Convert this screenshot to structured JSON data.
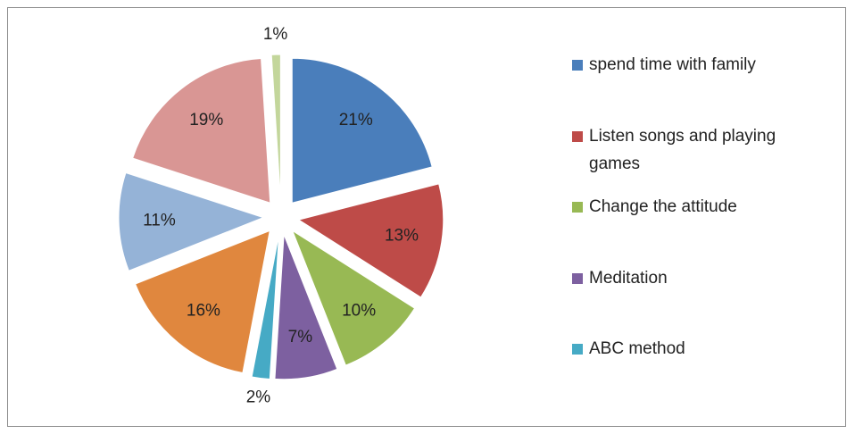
{
  "chart_data": {
    "type": "pie",
    "categories": [
      "spend time with family",
      "Listen songs and playing games",
      "Change the attitude",
      "Meditation",
      "ABC method",
      null,
      null,
      null,
      null
    ],
    "values": [
      21,
      13,
      10,
      7,
      2,
      16,
      11,
      19,
      1
    ],
    "value_labels": [
      "21%",
      "13%",
      "10%",
      "7%",
      "2%",
      "16%",
      "11%",
      "19%",
      "1%"
    ],
    "colors": [
      "#4a7ebb",
      "#be4b48",
      "#98b954",
      "#7d60a0",
      "#46aac5",
      "#e0873e",
      "#95b3d7",
      "#d99694",
      "#c3d69b"
    ],
    "legend": "right"
  }
}
